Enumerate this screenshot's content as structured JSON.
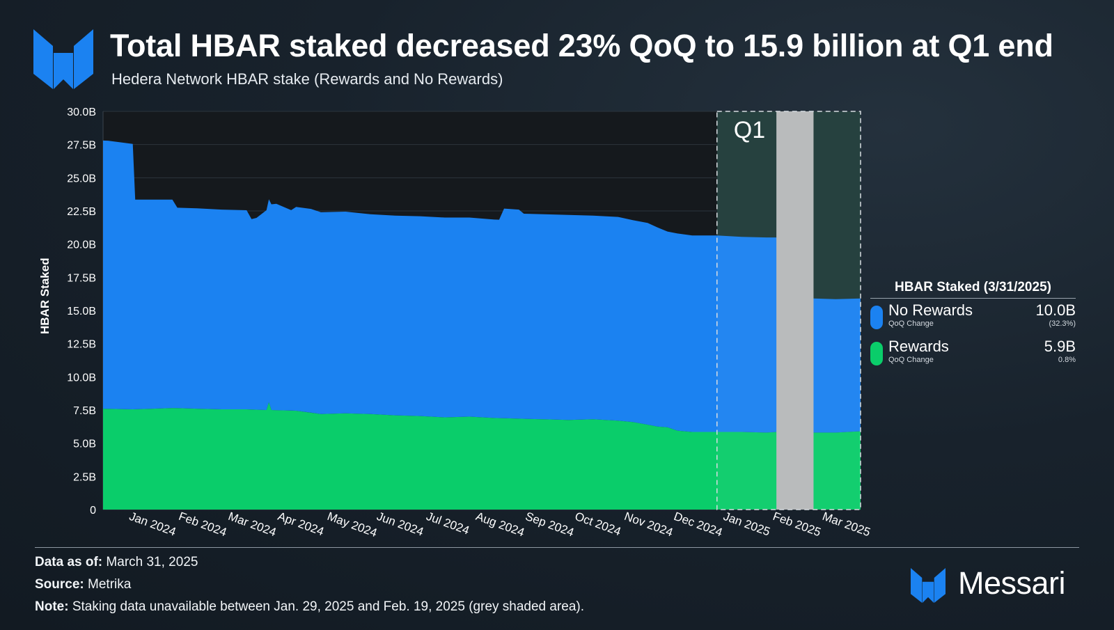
{
  "header": {
    "title": "Total HBAR staked decreased 23% QoQ to 15.9 billion at Q1 end",
    "subtitle": "Hedera Network HBAR stake (Rewards and No Rewards)"
  },
  "colors": {
    "no_rewards": "#1b82f1",
    "rewards": "#0acd6a",
    "q1_shade": "#1e3a38",
    "gap_shade": "#b9bbbc",
    "logo": "#1b82f1"
  },
  "chart_data": {
    "type": "area",
    "stacked": true,
    "title": "Hedera Network HBAR stake (Rewards and No Rewards)",
    "ylabel": "HBAR Staked",
    "xlabel": "",
    "ylim": [
      0,
      30
    ],
    "yticks": [
      "0",
      "2.5B",
      "5.0B",
      "7.5B",
      "10.0B",
      "12.5B",
      "15.0B",
      "17.5B",
      "20.0B",
      "22.5B",
      "25.0B",
      "27.5B",
      "30.0B"
    ],
    "x_range": [
      -0.4,
      14.9
    ],
    "xticks": [
      {
        "x": 0.0,
        "label": "Jan 2024"
      },
      {
        "x": 1.0,
        "label": "Feb 2024"
      },
      {
        "x": 2.0,
        "label": "Mar 2024"
      },
      {
        "x": 3.0,
        "label": "Apr 2024"
      },
      {
        "x": 4.0,
        "label": "May 2024"
      },
      {
        "x": 5.0,
        "label": "Jun 2024"
      },
      {
        "x": 6.0,
        "label": "Jul 2024"
      },
      {
        "x": 7.0,
        "label": "Aug 2024"
      },
      {
        "x": 8.0,
        "label": "Sep 2024"
      },
      {
        "x": 9.0,
        "label": "Oct 2024"
      },
      {
        "x": 10.0,
        "label": "Nov 2024"
      },
      {
        "x": 11.0,
        "label": "Dec 2024"
      },
      {
        "x": 12.0,
        "label": "Jan 2025"
      },
      {
        "x": 13.0,
        "label": "Feb 2025"
      },
      {
        "x": 14.0,
        "label": "Mar 2025"
      }
    ],
    "q1_region": {
      "start": 12.0,
      "end": 14.9,
      "label": "Q1"
    },
    "gap_region": {
      "start": 13.2,
      "end": 13.95
    },
    "series": [
      {
        "name": "Rewards",
        "x": [
          -0.4,
          0.2,
          0.6,
          1.0,
          1.5,
          2.0,
          2.5,
          2.9,
          2.95,
          3.0,
          3.5,
          4.0,
          4.5,
          5.0,
          5.5,
          6.0,
          6.5,
          7.0,
          7.5,
          8.0,
          8.5,
          9.0,
          9.5,
          10.0,
          10.3,
          10.6,
          10.8,
          11.0,
          11.2,
          11.5,
          12.0,
          12.5,
          13.0,
          13.2,
          13.95,
          14.4,
          14.9
        ],
        "values": [
          7.6,
          7.55,
          7.6,
          7.65,
          7.6,
          7.55,
          7.55,
          7.5,
          8.1,
          7.5,
          7.45,
          7.2,
          7.25,
          7.2,
          7.1,
          7.05,
          6.95,
          7.0,
          6.9,
          6.85,
          6.8,
          6.75,
          6.8,
          6.7,
          6.6,
          6.4,
          6.25,
          6.2,
          5.95,
          5.85,
          5.85,
          5.85,
          5.8,
          5.85,
          5.8,
          5.8,
          5.9
        ]
      },
      {
        "name": "No Rewards",
        "x": [
          -0.4,
          -0.3,
          0.2,
          0.25,
          0.6,
          1.0,
          1.1,
          1.5,
          2.0,
          2.5,
          2.6,
          2.7,
          2.9,
          3.0,
          3.1,
          3.4,
          3.5,
          3.8,
          4.0,
          4.5,
          5.0,
          5.5,
          6.0,
          6.5,
          7.0,
          7.5,
          7.6,
          7.7,
          8.0,
          8.1,
          8.5,
          9.0,
          9.5,
          10.0,
          10.3,
          10.6,
          10.8,
          11.0,
          11.2,
          11.5,
          12.0,
          12.5,
          13.0,
          13.2,
          13.95,
          14.4,
          14.9
        ],
        "values": [
          20.2,
          20.2,
          20.0,
          15.8,
          15.75,
          15.7,
          15.1,
          15.1,
          15.05,
          15.0,
          14.35,
          14.45,
          15.05,
          15.5,
          15.55,
          15.1,
          15.35,
          15.35,
          15.2,
          15.2,
          15.05,
          15.05,
          15.05,
          15.05,
          15.0,
          14.95,
          14.95,
          15.8,
          15.75,
          15.45,
          15.45,
          15.45,
          15.35,
          15.35,
          15.2,
          15.2,
          15.0,
          14.75,
          14.85,
          14.8,
          14.8,
          14.7,
          14.7,
          14.65,
          10.1,
          10.05,
          10.0
        ]
      }
    ]
  },
  "legend": {
    "title": "HBAR Staked (3/31/2025)",
    "items": [
      {
        "name": "No Rewards",
        "sub": "QoQ Change",
        "value": "10.0B",
        "change": "(32.3%)"
      },
      {
        "name": "Rewards",
        "sub": "QoQ Change",
        "value": "5.9B",
        "change": "0.8%"
      }
    ]
  },
  "footer": {
    "data_as_of_label": "Data as of:",
    "data_as_of": "March 31, 2025",
    "source_label": "Source:",
    "source": "Metrika",
    "note_label": "Note:",
    "note": "Staking data unavailable between Jan. 29, 2025 and Feb. 19, 2025 (grey shaded area).",
    "brand": "Messari"
  }
}
